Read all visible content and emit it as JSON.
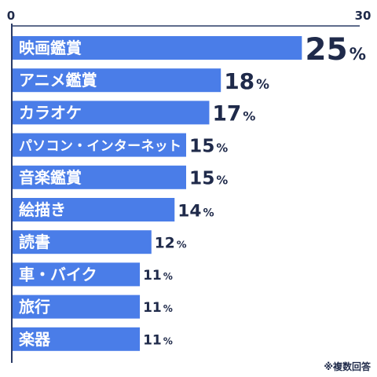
{
  "chart_data": {
    "type": "bar",
    "orientation": "horizontal",
    "categories": [
      "映画鑑賞",
      "アニメ鑑賞",
      "カラオケ",
      "パソコン・インターネット",
      "音楽鑑賞",
      "絵描き",
      "読書",
      "車・バイク",
      "旅行",
      "楽器"
    ],
    "values": [
      25,
      18,
      17,
      15,
      15,
      14,
      12,
      11,
      11,
      11
    ],
    "value_suffix": "%",
    "xlim": [
      0,
      30
    ],
    "x_ticks": [
      "0",
      "30"
    ],
    "grid": false,
    "legend": "none"
  },
  "note": "※複数回答",
  "colors": {
    "bar": "#4a7de8",
    "label_text": "#ffffff",
    "value_text": "#1f2a4a",
    "axis": "#2a3b66"
  }
}
